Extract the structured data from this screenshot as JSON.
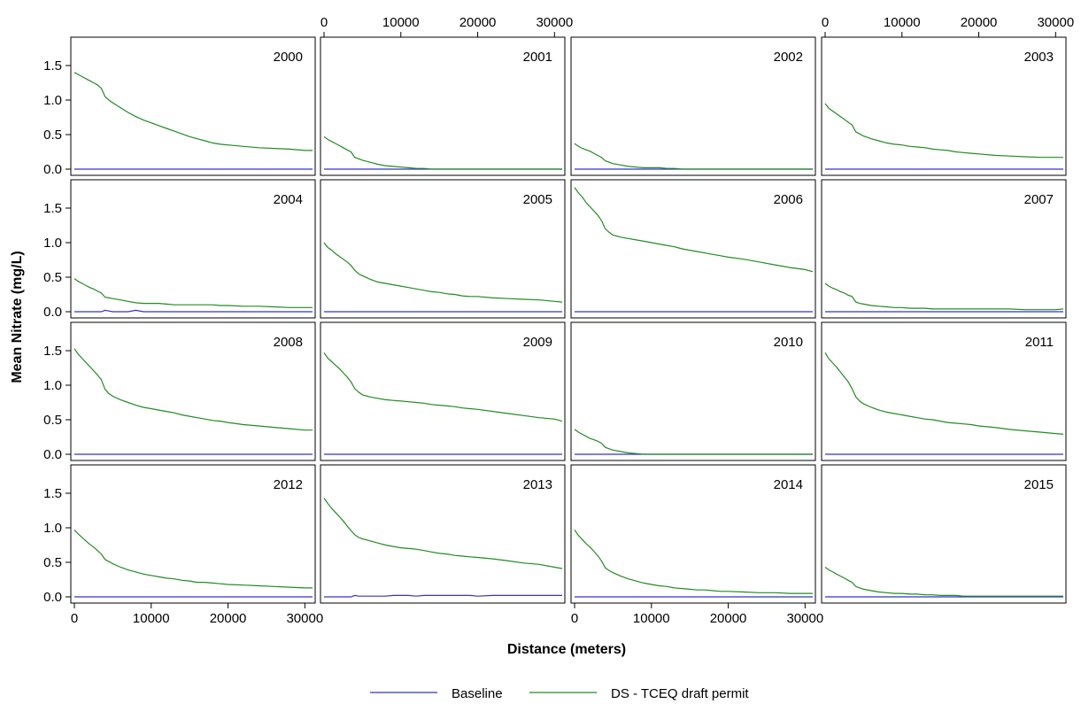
{
  "chart_data": {
    "type": "line",
    "layout": "small-multiples",
    "xlabel": "Distance (meters)",
    "ylabel": "Mean Nitrate (mg/L)",
    "xlim": [
      0,
      31000
    ],
    "ylim": [
      0,
      1.85
    ],
    "xticks": [
      0,
      10000,
      20000,
      30000
    ],
    "yticks": [
      "0.0",
      "0.5",
      "1.0",
      "1.5"
    ],
    "grid": false,
    "legend": {
      "position": "bottom",
      "entries": [
        {
          "name": "Baseline",
          "color": "#3333cc"
        },
        {
          "name": "DS - TCEQ draft permit",
          "color": "#228b22"
        }
      ]
    },
    "x": [
      0,
      500,
      1000,
      1500,
      2000,
      2500,
      3000,
      3500,
      4000,
      4500,
      5000,
      6000,
      7000,
      8000,
      9000,
      10000,
      11000,
      12000,
      13000,
      14000,
      15000,
      16000,
      17000,
      18000,
      19000,
      20000,
      22000,
      24000,
      26000,
      28000,
      30000,
      31000
    ],
    "panels": [
      {
        "label": "2000",
        "baseline": [
          0,
          0,
          0,
          0,
          0,
          0,
          0,
          0,
          0,
          0,
          0,
          0,
          0,
          0,
          0,
          0,
          0,
          0,
          0,
          0,
          0,
          0,
          0,
          0,
          0,
          0,
          0,
          0,
          0,
          0,
          0,
          0
        ],
        "ds": [
          1.4,
          1.37,
          1.34,
          1.31,
          1.28,
          1.25,
          1.22,
          1.17,
          1.05,
          1.0,
          0.96,
          0.89,
          0.82,
          0.76,
          0.71,
          0.67,
          0.63,
          0.59,
          0.55,
          0.51,
          0.47,
          0.44,
          0.41,
          0.38,
          0.36,
          0.35,
          0.33,
          0.31,
          0.3,
          0.29,
          0.27,
          0.27
        ]
      },
      {
        "label": "2001",
        "baseline": [
          0,
          0,
          0,
          0,
          0,
          0,
          0,
          0,
          0,
          0,
          0,
          0,
          0,
          0,
          0,
          0,
          0,
          0,
          0,
          0,
          0,
          0,
          0,
          0,
          0,
          0,
          0,
          0,
          0,
          0,
          0,
          0
        ],
        "ds": [
          0.47,
          0.43,
          0.4,
          0.37,
          0.34,
          0.31,
          0.28,
          0.25,
          0.17,
          0.15,
          0.13,
          0.1,
          0.07,
          0.05,
          0.04,
          0.03,
          0.02,
          0.01,
          0.01,
          0.0,
          0.0,
          0.0,
          0.0,
          0.0,
          0.0,
          0.0,
          0.0,
          0.0,
          0.0,
          0.0,
          0.0,
          0.0
        ]
      },
      {
        "label": "2002",
        "baseline": [
          0,
          0,
          0,
          0,
          0,
          0,
          0,
          0,
          0,
          0,
          0,
          0,
          0,
          0,
          0,
          0,
          0,
          0,
          0,
          0,
          0,
          0,
          0,
          0,
          0,
          0,
          0,
          0,
          0,
          0,
          0,
          0
        ],
        "ds": [
          0.37,
          0.33,
          0.3,
          0.28,
          0.26,
          0.23,
          0.2,
          0.17,
          0.12,
          0.1,
          0.08,
          0.06,
          0.04,
          0.03,
          0.02,
          0.02,
          0.02,
          0.01,
          0.01,
          0.0,
          0.0,
          0.0,
          0.0,
          0.0,
          0.0,
          0.0,
          0.0,
          0.0,
          0.0,
          0.0,
          0.0,
          0.0
        ]
      },
      {
        "label": "2003",
        "baseline": [
          0,
          0,
          0,
          0,
          0,
          0,
          0,
          0,
          0,
          0,
          0,
          0,
          0,
          0,
          0,
          0,
          0,
          0,
          0,
          0,
          0,
          0,
          0,
          0,
          0,
          0,
          0,
          0,
          0,
          0,
          0,
          0
        ],
        "ds": [
          0.95,
          0.88,
          0.84,
          0.8,
          0.76,
          0.72,
          0.68,
          0.64,
          0.54,
          0.51,
          0.48,
          0.44,
          0.41,
          0.38,
          0.36,
          0.35,
          0.33,
          0.32,
          0.31,
          0.29,
          0.28,
          0.27,
          0.25,
          0.24,
          0.23,
          0.22,
          0.2,
          0.19,
          0.18,
          0.17,
          0.17,
          0.17
        ]
      },
      {
        "label": "2004",
        "baseline": [
          0,
          0,
          0,
          0,
          0,
          0,
          0,
          0,
          0.02,
          0.01,
          0,
          0,
          0,
          0.02,
          0,
          0,
          0,
          0,
          0,
          0,
          0,
          0,
          0,
          0,
          0,
          0,
          0,
          0,
          0,
          0,
          0,
          0
        ],
        "ds": [
          0.48,
          0.44,
          0.41,
          0.38,
          0.35,
          0.33,
          0.3,
          0.27,
          0.21,
          0.2,
          0.19,
          0.17,
          0.15,
          0.13,
          0.12,
          0.12,
          0.12,
          0.11,
          0.1,
          0.1,
          0.1,
          0.1,
          0.1,
          0.1,
          0.09,
          0.09,
          0.08,
          0.08,
          0.07,
          0.06,
          0.06,
          0.06
        ]
      },
      {
        "label": "2005",
        "baseline": [
          0,
          0,
          0,
          0,
          0,
          0,
          0,
          0,
          0,
          0,
          0,
          0,
          0,
          0,
          0,
          0,
          0,
          0,
          0,
          0,
          0,
          0,
          0,
          0,
          0,
          0,
          0,
          0,
          0,
          0,
          0,
          0
        ],
        "ds": [
          1.0,
          0.93,
          0.89,
          0.84,
          0.8,
          0.76,
          0.72,
          0.67,
          0.6,
          0.55,
          0.52,
          0.47,
          0.43,
          0.41,
          0.39,
          0.37,
          0.35,
          0.33,
          0.31,
          0.29,
          0.28,
          0.26,
          0.25,
          0.23,
          0.22,
          0.22,
          0.2,
          0.19,
          0.18,
          0.17,
          0.15,
          0.14
        ]
      },
      {
        "label": "2006",
        "baseline": [
          0,
          0,
          0,
          0,
          0,
          0,
          0,
          0,
          0,
          0,
          0,
          0,
          0,
          0,
          0,
          0,
          0,
          0,
          0,
          0,
          0,
          0,
          0,
          0,
          0,
          0,
          0,
          0,
          0,
          0,
          0,
          0
        ],
        "ds": [
          1.8,
          1.72,
          1.66,
          1.58,
          1.52,
          1.46,
          1.4,
          1.32,
          1.2,
          1.15,
          1.11,
          1.08,
          1.06,
          1.04,
          1.02,
          1.0,
          0.98,
          0.96,
          0.94,
          0.91,
          0.89,
          0.87,
          0.85,
          0.83,
          0.81,
          0.79,
          0.76,
          0.72,
          0.68,
          0.64,
          0.61,
          0.58
        ]
      },
      {
        "label": "2007",
        "baseline": [
          0,
          0,
          0,
          0,
          0,
          0,
          0,
          0,
          0,
          0,
          0,
          0,
          0,
          0,
          0,
          0,
          0,
          0,
          0,
          0,
          0,
          0,
          0,
          0,
          0,
          0,
          0,
          0,
          0,
          0,
          0,
          0
        ],
        "ds": [
          0.41,
          0.37,
          0.34,
          0.32,
          0.29,
          0.27,
          0.24,
          0.22,
          0.14,
          0.12,
          0.11,
          0.09,
          0.08,
          0.07,
          0.06,
          0.06,
          0.05,
          0.05,
          0.05,
          0.04,
          0.04,
          0.04,
          0.04,
          0.04,
          0.04,
          0.04,
          0.04,
          0.04,
          0.03,
          0.03,
          0.03,
          0.04
        ]
      },
      {
        "label": "2008",
        "baseline": [
          0,
          0,
          0,
          0,
          0,
          0,
          0,
          0,
          0,
          0,
          0,
          0,
          0,
          0,
          0,
          0,
          0,
          0,
          0,
          0,
          0,
          0,
          0,
          0,
          0,
          0,
          0,
          0,
          0,
          0,
          0,
          0
        ],
        "ds": [
          1.53,
          1.45,
          1.39,
          1.33,
          1.27,
          1.21,
          1.15,
          1.08,
          0.94,
          0.88,
          0.84,
          0.79,
          0.75,
          0.71,
          0.68,
          0.66,
          0.64,
          0.62,
          0.6,
          0.57,
          0.55,
          0.53,
          0.51,
          0.49,
          0.48,
          0.46,
          0.43,
          0.41,
          0.39,
          0.37,
          0.35,
          0.35
        ]
      },
      {
        "label": "2009",
        "baseline": [
          0,
          0,
          0,
          0,
          0,
          0,
          0,
          0,
          0,
          0,
          0,
          0,
          0,
          0,
          0,
          0,
          0,
          0,
          0,
          0,
          0,
          0,
          0,
          0,
          0,
          0,
          0,
          0,
          0,
          0,
          0,
          0
        ],
        "ds": [
          1.47,
          1.39,
          1.34,
          1.29,
          1.24,
          1.18,
          1.12,
          1.05,
          0.95,
          0.9,
          0.86,
          0.83,
          0.81,
          0.79,
          0.78,
          0.77,
          0.76,
          0.75,
          0.74,
          0.72,
          0.71,
          0.7,
          0.69,
          0.67,
          0.66,
          0.65,
          0.62,
          0.59,
          0.56,
          0.53,
          0.51,
          0.48
        ]
      },
      {
        "label": "2010",
        "baseline": [
          0,
          0,
          0,
          0,
          0,
          0,
          0,
          0,
          0,
          0,
          0,
          0,
          0,
          0,
          0,
          0,
          0,
          0,
          0,
          0,
          0,
          0,
          0,
          0,
          0,
          0,
          0,
          0,
          0,
          0,
          0,
          0
        ],
        "ds": [
          0.36,
          0.32,
          0.29,
          0.26,
          0.23,
          0.21,
          0.19,
          0.16,
          0.1,
          0.08,
          0.06,
          0.04,
          0.02,
          0.01,
          0.0,
          0.0,
          0.0,
          0.0,
          0.0,
          0.0,
          0.0,
          0.0,
          0.0,
          0.0,
          0.0,
          0.0,
          0.0,
          0.0,
          0.0,
          0.0,
          0.0,
          0.0
        ]
      },
      {
        "label": "2011",
        "baseline": [
          0,
          0,
          0,
          0,
          0,
          0,
          0,
          0,
          0,
          0,
          0,
          0,
          0,
          0,
          0,
          0,
          0,
          0,
          0,
          0,
          0,
          0,
          0,
          0,
          0,
          0,
          0,
          0,
          0,
          0,
          0,
          0
        ],
        "ds": [
          1.47,
          1.38,
          1.32,
          1.26,
          1.19,
          1.12,
          1.05,
          0.95,
          0.83,
          0.77,
          0.73,
          0.68,
          0.64,
          0.61,
          0.59,
          0.57,
          0.55,
          0.53,
          0.51,
          0.5,
          0.48,
          0.46,
          0.45,
          0.44,
          0.43,
          0.41,
          0.39,
          0.36,
          0.34,
          0.32,
          0.3,
          0.29
        ]
      },
      {
        "label": "2012",
        "baseline": [
          0,
          0,
          0,
          0,
          0,
          0,
          0,
          0,
          0,
          0,
          0,
          0,
          0,
          0,
          0,
          0,
          0,
          0,
          0,
          0,
          0,
          0,
          0,
          0,
          0,
          0,
          0,
          0,
          0,
          0,
          0,
          0
        ],
        "ds": [
          0.97,
          0.91,
          0.86,
          0.81,
          0.76,
          0.72,
          0.67,
          0.62,
          0.54,
          0.51,
          0.48,
          0.43,
          0.39,
          0.36,
          0.33,
          0.31,
          0.29,
          0.27,
          0.26,
          0.24,
          0.23,
          0.21,
          0.21,
          0.2,
          0.19,
          0.18,
          0.17,
          0.16,
          0.15,
          0.14,
          0.13,
          0.13
        ]
      },
      {
        "label": "2013",
        "baseline": [
          0,
          0,
          0,
          0,
          0,
          0,
          0,
          0,
          0.02,
          0.01,
          0.01,
          0.01,
          0.01,
          0.01,
          0.02,
          0.02,
          0.02,
          0.01,
          0.02,
          0.02,
          0.02,
          0.02,
          0.02,
          0.02,
          0.02,
          0.01,
          0.02,
          0.02,
          0.02,
          0.02,
          0.02,
          0.02
        ],
        "ds": [
          1.43,
          1.35,
          1.28,
          1.22,
          1.16,
          1.1,
          1.03,
          0.96,
          0.9,
          0.86,
          0.84,
          0.81,
          0.78,
          0.75,
          0.73,
          0.71,
          0.7,
          0.69,
          0.67,
          0.65,
          0.63,
          0.62,
          0.6,
          0.59,
          0.58,
          0.57,
          0.55,
          0.52,
          0.49,
          0.47,
          0.43,
          0.41
        ]
      },
      {
        "label": "2014",
        "baseline": [
          0,
          0,
          0,
          0,
          0,
          0,
          0,
          0,
          0,
          0,
          0,
          0,
          0,
          0,
          0,
          0,
          0,
          0,
          0,
          0,
          0,
          0,
          0,
          0,
          0,
          0,
          0,
          0,
          0,
          0,
          0,
          0
        ],
        "ds": [
          0.97,
          0.89,
          0.83,
          0.77,
          0.72,
          0.66,
          0.6,
          0.52,
          0.42,
          0.38,
          0.35,
          0.3,
          0.26,
          0.23,
          0.2,
          0.18,
          0.16,
          0.15,
          0.13,
          0.12,
          0.11,
          0.1,
          0.1,
          0.09,
          0.08,
          0.08,
          0.07,
          0.06,
          0.06,
          0.05,
          0.05,
          0.05
        ]
      },
      {
        "label": "2015",
        "baseline": [
          0,
          0,
          0,
          0,
          0,
          0,
          0,
          0,
          0,
          0,
          0,
          0,
          0,
          0,
          0,
          0,
          0,
          0,
          0,
          0,
          0,
          0,
          0,
          0,
          0,
          0,
          0,
          0,
          0,
          0,
          0,
          0
        ],
        "ds": [
          0.43,
          0.39,
          0.36,
          0.33,
          0.3,
          0.27,
          0.24,
          0.21,
          0.15,
          0.13,
          0.11,
          0.09,
          0.07,
          0.06,
          0.05,
          0.05,
          0.04,
          0.04,
          0.03,
          0.03,
          0.02,
          0.02,
          0.02,
          0.01,
          0.01,
          0.01,
          0.01,
          0.01,
          0.01,
          0.01,
          0.01,
          0.01
        ]
      }
    ]
  }
}
